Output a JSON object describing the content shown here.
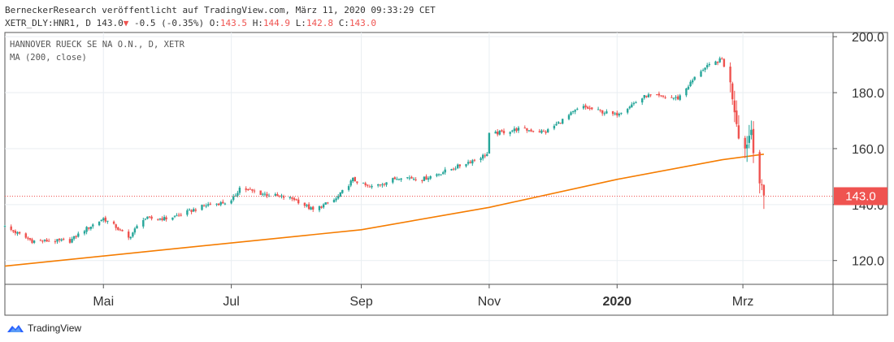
{
  "header": {
    "publisher_line": "BerneckerResearch veröffentlicht auf TradingView.com, März 11, 2020 09:33:29 CET",
    "symbol": "XETR_DLY:HNR1, D",
    "last": "143.0",
    "change": "-0.5 (-0.35%)",
    "o_label": "O:",
    "o_value": "143.5",
    "h_label": "H:",
    "h_value": "144.9",
    "l_label": "L:",
    "l_value": "142.8",
    "c_label": "C:",
    "c_value": "143.0"
  },
  "footer": {
    "logo_text": "TradingView",
    "logo_icon": "tradingview-logo-icon"
  },
  "chart_data": {
    "type": "candlestick",
    "legend_lines": [
      "HANNOVER RUECK SE NA O.N., D, XETR",
      "MA (200, close)"
    ],
    "x_ticks": [
      {
        "label": "Mai",
        "date": "2019-05-01",
        "bold": false
      },
      {
        "label": "Jul",
        "date": "2019-07-01",
        "bold": false
      },
      {
        "label": "Sep",
        "date": "2019-09-01",
        "bold": false
      },
      {
        "label": "Nov",
        "date": "2019-11-01",
        "bold": false
      },
      {
        "label": "2020",
        "date": "2020-01-01",
        "bold": true
      },
      {
        "label": "Mrz",
        "date": "2020-03-01",
        "bold": false
      }
    ],
    "x_range": [
      "2019-03-15",
      "2020-04-13"
    ],
    "y_ticks": [
      "200.0",
      "180.0",
      "160.0",
      "140.0",
      "120.0"
    ],
    "ylim": [
      111.5,
      201.5
    ],
    "last_price": 143.0,
    "last_price_label": "143.0",
    "colors": {
      "up": "#26a69a",
      "down": "#ef5350",
      "ma": "#f57c00",
      "grid": "#e9eef2",
      "border": "#555555"
    },
    "price_path": [
      [
        "2019-03-15",
        132
      ],
      [
        "2019-03-28",
        127
      ],
      [
        "2019-04-15",
        127
      ],
      [
        "2019-04-22",
        131
      ],
      [
        "2019-05-01",
        135
      ],
      [
        "2019-05-07",
        132
      ],
      [
        "2019-05-13",
        128
      ],
      [
        "2019-05-20",
        135
      ],
      [
        "2019-05-31",
        135
      ],
      [
        "2019-06-05",
        136
      ],
      [
        "2019-06-20",
        140
      ],
      [
        "2019-07-01",
        141
      ],
      [
        "2019-07-05",
        146
      ],
      [
        "2019-07-15",
        144
      ],
      [
        "2019-07-31",
        142
      ],
      [
        "2019-08-09",
        138
      ],
      [
        "2019-08-20",
        142
      ],
      [
        "2019-08-28",
        149
      ],
      [
        "2019-09-05",
        146
      ],
      [
        "2019-09-20",
        150
      ],
      [
        "2019-09-30",
        149
      ],
      [
        "2019-10-15",
        153
      ],
      [
        "2019-10-31",
        158
      ],
      [
        "2019-11-01",
        165
      ],
      [
        "2019-11-15",
        167
      ],
      [
        "2019-11-28",
        166
      ],
      [
        "2019-12-15",
        175
      ],
      [
        "2019-12-31",
        172
      ],
      [
        "2020-01-15",
        179
      ],
      [
        "2020-01-30",
        178
      ],
      [
        "2020-02-10",
        188
      ],
      [
        "2020-02-20",
        192
      ],
      [
        "2020-02-24",
        183
      ],
      [
        "2020-02-28",
        165
      ],
      [
        "2020-03-02",
        160
      ],
      [
        "2020-03-05",
        167
      ],
      [
        "2020-03-06",
        160
      ],
      [
        "2020-03-09",
        148
      ],
      [
        "2020-03-11",
        143
      ]
    ],
    "ma_path": [
      [
        "2019-03-15",
        118
      ],
      [
        "2019-06-01",
        124
      ],
      [
        "2019-09-01",
        131
      ],
      [
        "2019-11-01",
        139
      ],
      [
        "2020-01-01",
        149
      ],
      [
        "2020-02-20",
        156
      ],
      [
        "2020-03-11",
        158
      ]
    ]
  }
}
